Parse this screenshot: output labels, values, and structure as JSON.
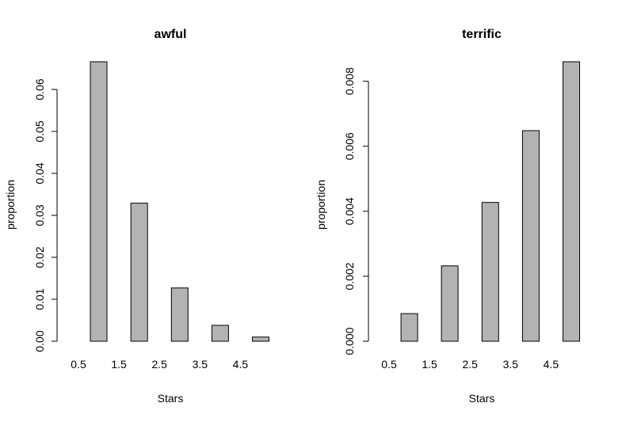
{
  "chart_data": [
    {
      "type": "bar",
      "title": "awful",
      "xlabel": "Stars",
      "ylabel": "proportion",
      "x_tick_labels": [
        "0.5",
        "1.5",
        "2.5",
        "3.5",
        "4.5"
      ],
      "y_ticks": [
        0.0,
        0.01,
        0.02,
        0.03,
        0.04,
        0.05,
        0.06
      ],
      "y_tick_labels": [
        "0.00",
        "0.01",
        "0.02",
        "0.03",
        "0.04",
        "0.05",
        "0.06"
      ],
      "ylim": [
        0,
        0.0666
      ],
      "bars": [
        {
          "x": 0.5,
          "value": 0.0
        },
        {
          "x": 1.0,
          "value": 0.0666
        },
        {
          "x": 2.0,
          "value": 0.0329
        },
        {
          "x": 3.0,
          "value": 0.0127
        },
        {
          "x": 4.0,
          "value": 0.0038
        },
        {
          "x": 5.0,
          "value": 0.001
        }
      ]
    },
    {
      "type": "bar",
      "title": "terrific",
      "xlabel": "Stars",
      "ylabel": "proportion",
      "x_tick_labels": [
        "0.5",
        "1.5",
        "2.5",
        "3.5",
        "4.5"
      ],
      "y_ticks": [
        0.0,
        0.002,
        0.004,
        0.006,
        0.008
      ],
      "y_tick_labels": [
        "0.000",
        "0.002",
        "0.004",
        "0.006",
        "0.008"
      ],
      "ylim": [
        0,
        0.0086
      ],
      "bars": [
        {
          "x": 0.5,
          "value": 0.0
        },
        {
          "x": 1.0,
          "value": 0.00085
        },
        {
          "x": 2.0,
          "value": 0.00232
        },
        {
          "x": 3.0,
          "value": 0.00427
        },
        {
          "x": 4.0,
          "value": 0.00648
        },
        {
          "x": 5.0,
          "value": 0.0086
        }
      ]
    }
  ]
}
